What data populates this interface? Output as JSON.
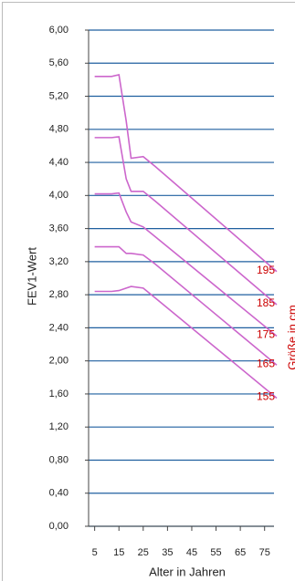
{
  "chart_data": {
    "type": "line",
    "y_label": "FEV1-Wert",
    "x_label": "Alter in Jahren",
    "y2_label": "Größe in cm",
    "x": [
      5,
      12,
      15,
      18,
      20,
      25,
      30,
      80
    ],
    "series": [
      {
        "name": "195",
        "color": "#cc66cc",
        "values": [
          5.44,
          5.44,
          5.46,
          4.9,
          4.45,
          4.47,
          4.35,
          3.08
        ]
      },
      {
        "name": "185",
        "color": "#cc66cc",
        "values": [
          4.7,
          4.7,
          4.71,
          4.2,
          4.05,
          4.05,
          3.93,
          2.68
        ]
      },
      {
        "name": "175",
        "color": "#cc66cc",
        "values": [
          4.02,
          4.02,
          4.03,
          3.8,
          3.68,
          3.62,
          3.5,
          2.3
        ]
      },
      {
        "name": "165",
        "color": "#cc66cc",
        "values": [
          3.38,
          3.38,
          3.38,
          3.3,
          3.3,
          3.28,
          3.17,
          1.95
        ]
      },
      {
        "name": "155",
        "color": "#cc66cc",
        "values": [
          2.84,
          2.84,
          2.85,
          2.88,
          2.9,
          2.88,
          2.76,
          1.55
        ]
      }
    ],
    "label_color": "#cc0000",
    "xlim": [
      2.5,
      80
    ],
    "xticks": [
      5,
      15,
      25,
      35,
      45,
      55,
      65,
      75
    ],
    "ylim": [
      0,
      6
    ],
    "yticks": [
      {
        "value": 0,
        "label": "0,00"
      },
      {
        "value": 0.4,
        "label": "0,40"
      },
      {
        "value": 0.8,
        "label": "0,80"
      },
      {
        "value": 1.2,
        "label": "1,20"
      },
      {
        "value": 1.6,
        "label": "1,60"
      },
      {
        "value": 2,
        "label": "2,00"
      },
      {
        "value": 2.4,
        "label": "2,40"
      },
      {
        "value": 2.8,
        "label": "2,80"
      },
      {
        "value": 3.2,
        "label": "3,20"
      },
      {
        "value": 3.6,
        "label": "3,60"
      },
      {
        "value": 4,
        "label": "4,00"
      },
      {
        "value": 4.4,
        "label": "4,40"
      },
      {
        "value": 4.8,
        "label": "4,80"
      },
      {
        "value": 5.2,
        "label": "5,20"
      },
      {
        "value": 5.6,
        "label": "5,60"
      },
      {
        "value": 6,
        "label": "6,00"
      }
    ],
    "grid": true,
    "grid_color": "#1f5f9f"
  }
}
